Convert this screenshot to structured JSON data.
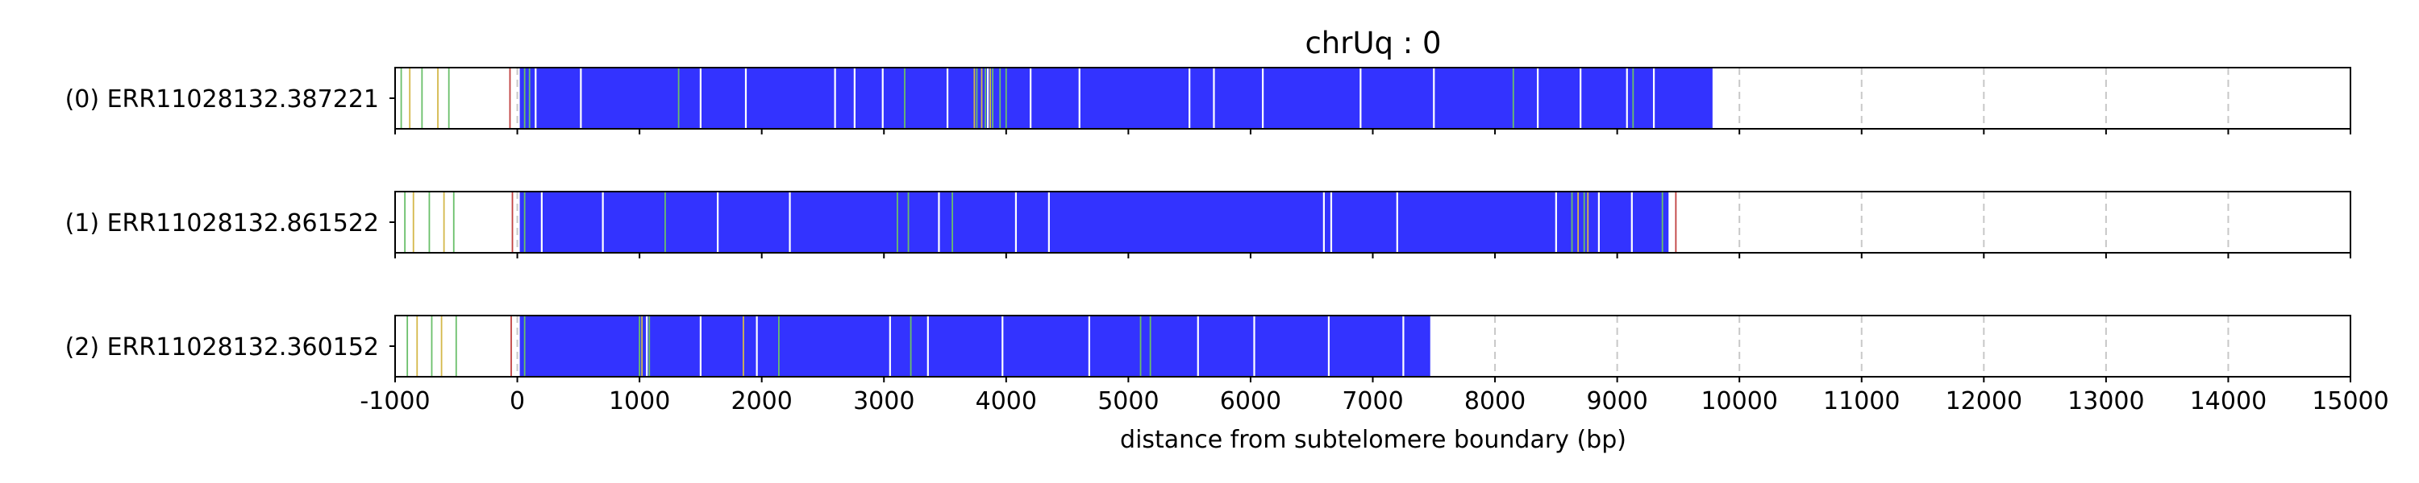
{
  "chart_data": {
    "type": "bar",
    "title": "chrUq : 0",
    "xlabel": "distance from subtelomere boundary (bp)",
    "ylabel": "",
    "xlim": [
      -1000,
      15000
    ],
    "grid": "x-dashed",
    "xticks": [
      {
        "value": -1000,
        "label": "-1000"
      },
      {
        "value": 0,
        "label": "0"
      },
      {
        "value": 1000,
        "label": "1000"
      },
      {
        "value": 2000,
        "label": "2000"
      },
      {
        "value": 3000,
        "label": "3000"
      },
      {
        "value": 4000,
        "label": "4000"
      },
      {
        "value": 5000,
        "label": "5000"
      },
      {
        "value": 6000,
        "label": "6000"
      },
      {
        "value": 7000,
        "label": "7000"
      },
      {
        "value": 8000,
        "label": "8000"
      },
      {
        "value": 9000,
        "label": "9000"
      },
      {
        "value": 10000,
        "label": "10000"
      },
      {
        "value": 11000,
        "label": "11000"
      },
      {
        "value": 12000,
        "label": "12000"
      },
      {
        "value": 13000,
        "label": "13000"
      },
      {
        "value": 14000,
        "label": "14000"
      },
      {
        "value": 15000,
        "label": "15000"
      }
    ],
    "colors": {
      "repeat": "#3333ff",
      "gap": "#ffffff",
      "green": "#6abf6a",
      "gold": "#d4b84a",
      "red": "#c04040",
      "grid": "#c8c8c8",
      "frame": "#000000"
    },
    "reads": [
      {
        "label": "(0) ERR11028132.387221",
        "span": [
          -1000,
          9800
        ],
        "blue_span": [
          20,
          9780
        ],
        "white_lines": [
          150,
          520,
          1500,
          1870,
          2600,
          2760,
          2990,
          3520,
          3850,
          4200,
          4600,
          5500,
          5700,
          6100,
          6900,
          7500,
          8350,
          8700,
          9080,
          9300
        ],
        "green_lines": [
          -950,
          -780,
          -560,
          60,
          100,
          1320,
          3170,
          3760,
          3830,
          3890,
          3950,
          4000,
          8150,
          9130
        ],
        "gold_lines": [
          -880,
          -650,
          3740,
          3800,
          3870
        ],
        "red_lines": [
          -60
        ]
      },
      {
        "label": "(1) ERR11028132.861522",
        "span": [
          -1000,
          9500
        ],
        "blue_span": [
          20,
          9420
        ],
        "white_lines": [
          200,
          700,
          1640,
          2230,
          3450,
          4080,
          4350,
          6600,
          6660,
          7200,
          8500,
          8850,
          9120
        ],
        "green_lines": [
          -920,
          -720,
          -520,
          60,
          1210,
          3110,
          3200,
          3560,
          8630,
          8730,
          9370
        ],
        "gold_lines": [
          -850,
          -600,
          8680,
          8760
        ],
        "red_lines": [
          -40,
          9480
        ]
      },
      {
        "label": "(2) ERR11028132.360152",
        "span": [
          -1000,
          7480
        ],
        "blue_span": [
          20,
          7470
        ],
        "white_lines": [
          1060,
          1500,
          1960,
          3050,
          3360,
          3970,
          4680,
          5570,
          6030,
          6640,
          7250
        ],
        "green_lines": [
          -900,
          -700,
          -500,
          60,
          1000,
          1080,
          2140,
          3220,
          5100,
          5180
        ],
        "gold_lines": [
          -820,
          -620,
          1020,
          1850
        ],
        "red_lines": [
          -50
        ]
      }
    ]
  }
}
